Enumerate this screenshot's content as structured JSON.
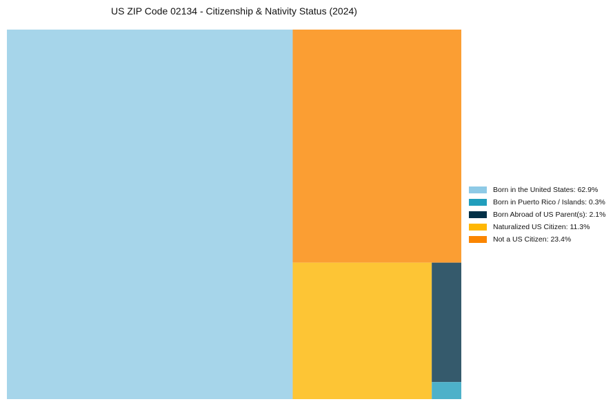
{
  "chart_data": {
    "type": "treemap",
    "title": "US ZIP Code 02134 - Citizenship & Nativity Status (2024)",
    "unit": "%",
    "legend_position": "right",
    "segments": [
      {
        "name": "Born in the United States",
        "value": 62.9,
        "legend_label": "Born in the United States: 62.9%",
        "color": "#8ecae6",
        "fill": "#a6d5ea"
      },
      {
        "name": "Born in Puerto Rico / Islands",
        "value": 0.3,
        "legend_label": "Born in Puerto Rico / Islands: 0.3%",
        "color": "#219ebc",
        "fill": "#4db1c9"
      },
      {
        "name": "Born Abroad of US Parent(s)",
        "value": 2.1,
        "legend_label": "Born Abroad of US Parent(s): 2.1%",
        "color": "#023047",
        "fill": "#355a6c"
      },
      {
        "name": "Naturalized US Citizen",
        "value": 11.3,
        "legend_label": "Naturalized US Citizen: 11.3%",
        "color": "#ffb703",
        "fill": "#fdc535"
      },
      {
        "name": "Not a US Citizen",
        "value": 23.4,
        "legend_label": "Not a US Citizen: 23.4%",
        "color": "#fb8500",
        "fill": "#fb9e33"
      }
    ]
  }
}
